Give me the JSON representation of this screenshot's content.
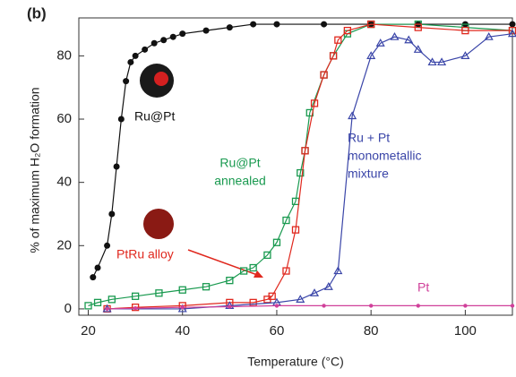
{
  "chart_data": {
    "type": "line",
    "title": "(b)",
    "x_label": "Temperature (°C)",
    "y_label": "% of maximum H₂O formation",
    "xlim": [
      18,
      110
    ],
    "ylim": [
      -2,
      92
    ],
    "xticks": [
      20,
      40,
      60,
      80,
      100
    ],
    "yticks": [
      0,
      20,
      40,
      60,
      80
    ],
    "series": [
      {
        "color": "#111111",
        "marker": "circle",
        "x": [
          21,
          22,
          24,
          25,
          26,
          27,
          28,
          29,
          30,
          32,
          34,
          36,
          38,
          40,
          45,
          50,
          55,
          60,
          70,
          80,
          90,
          100,
          110
        ],
        "values": [
          10,
          13,
          20,
          30,
          45,
          60,
          72,
          78,
          80,
          82,
          84,
          85,
          86,
          87,
          88,
          89,
          90,
          90,
          90,
          90,
          90,
          90,
          90
        ]
      },
      {
        "color": "#1a9a50",
        "marker": "square",
        "x": [
          20,
          22,
          25,
          30,
          35,
          40,
          45,
          50,
          53,
          55,
          58,
          60,
          62,
          64,
          65,
          66,
          67,
          70,
          72,
          75,
          80,
          90,
          100,
          110
        ],
        "values": [
          1,
          2,
          3,
          4,
          5,
          6,
          7,
          9,
          12,
          13,
          17,
          21,
          28,
          34,
          43,
          50,
          62,
          74,
          80,
          87,
          90,
          90,
          89,
          88
        ]
      },
      {
        "color": "#e0281e",
        "marker": "square",
        "x": [
          24,
          30,
          40,
          50,
          55,
          58,
          59,
          62,
          64,
          66,
          68,
          70,
          72,
          73,
          75,
          80,
          90,
          100,
          110
        ],
        "values": [
          0,
          0.5,
          1,
          2,
          2,
          3,
          4,
          12,
          25,
          50,
          65,
          74,
          80,
          85,
          88,
          90,
          89,
          88,
          88
        ]
      },
      {
        "color": "#3a45a8",
        "marker": "triangle",
        "x": [
          24,
          40,
          50,
          60,
          65,
          68,
          71,
          73,
          76,
          80,
          82,
          85,
          88,
          90,
          93,
          95,
          100,
          105,
          110
        ],
        "values": [
          0,
          0,
          1,
          2,
          3,
          5,
          7,
          12,
          61,
          80,
          84,
          86,
          85,
          82,
          78,
          78,
          80,
          86,
          87
        ]
      },
      {
        "color": "#d0409a",
        "marker": "dot",
        "x": [
          24,
          30,
          40,
          50,
          60,
          70,
          80,
          90,
          100,
          110
        ],
        "values": [
          0,
          0.2,
          0.5,
          0.7,
          1,
          1,
          1,
          1,
          1,
          1
        ]
      }
    ],
    "annotations": [
      {
        "text": [
          "Ru@Pt"
        ],
        "color": "#111111"
      },
      {
        "text": [
          "Ru@Pt",
          "annealed"
        ],
        "color": "#1a9a50"
      },
      {
        "text": [
          "PtRu alloy"
        ],
        "color": "#e0281e"
      },
      {
        "text": [
          "Ru + Pt",
          "monometallic",
          "mixture"
        ],
        "color": "#3a45a8"
      },
      {
        "text": [
          "Pt"
        ],
        "color": "#d0409a"
      }
    ]
  }
}
